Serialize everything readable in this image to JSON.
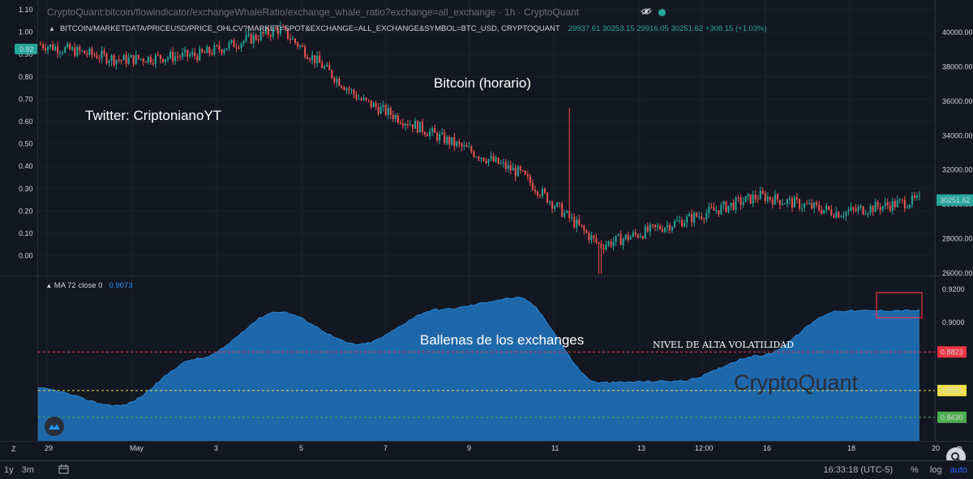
{
  "header": {
    "title": "CryptoQuant:bitcoin/flowindicator/exchangeWhaleRatio/exchange_whale_ratio?exchange=all_exchange · 1h · CryptoQuant",
    "eye_icon": "eye-hidden-icon",
    "status_color": "#26a69a"
  },
  "legend": {
    "collapse_glyph": "▴",
    "symbol": "BITCOIN/MARKETDATA/PRICEUSD/PRICE_OHLCV?MARKET=SPOT&EXCHANGE=ALL_EXCHANGE&SYMBOL=BTC_USD, CRYPTOQUANT",
    "ohlc": "29937.61 30253.15 29916.05 30251.62 +308.15 (+1.03%)"
  },
  "indicator": {
    "name": "MA 72 close 0",
    "value": "0.9073"
  },
  "annotations": {
    "twitter": "Twitter: CriptonianoYT",
    "bitcoin": "Bitcoin (horario)",
    "whales": "Ballenas de los exchanges",
    "volatility": "NIVEL DE ALTA VOLATILIDAD"
  },
  "watermark": "CryptoQuant",
  "left_axis": {
    "ticks": [
      "1.10",
      "1.00",
      "0.90",
      "0.80",
      "0.70",
      "0.60",
      "0.50",
      "0.40",
      "0.30",
      "0.20",
      "0.10",
      "0.00"
    ],
    "current_badge": "0.92"
  },
  "right_axis": {
    "ticks": [
      "40000.00",
      "38000.00",
      "36000.00",
      "34000.00",
      "32000.00",
      "30000.00",
      "28000.00",
      "26000.00"
    ],
    "price_badge": "30251.62"
  },
  "indicator_axis": {
    "ticks": [
      "0.9200",
      "0.9000"
    ],
    "badges": [
      {
        "label": "0.8823",
        "color": "#f23645"
      },
      {
        "label": "0.8591",
        "color": "#f0e14a"
      },
      {
        "label": "0.8430",
        "color": "#4caf50"
      }
    ]
  },
  "x_axis": {
    "labels": [
      "29",
      "May",
      "3",
      "5",
      "7",
      "9",
      "11",
      "13",
      "12:00",
      "16",
      "18",
      "20"
    ]
  },
  "bottom_bar": {
    "range_1y": "1y",
    "range_3m": "3m",
    "calendar_icon": "calendar-range-icon",
    "time": "16:33:18 (UTC-5)",
    "percent": "%",
    "log": "log",
    "auto": "auto"
  },
  "toolbar": {
    "z_label": "Z",
    "search_icon": "search-icon",
    "settings_icon": "gear-icon"
  },
  "colors": {
    "background": "#131722",
    "up": "#26a69a",
    "down": "#ef5350",
    "area_fill": "#1f6fb5",
    "area_line": "#2a84d2",
    "grid": "#1c202b",
    "highlight_box": "#f23645"
  },
  "chart_data": [
    {
      "type": "line",
      "name": "BTC/USD hourly (close)",
      "x": [
        "29",
        "May",
        "3",
        "5",
        "7",
        "9",
        "11",
        "13",
        "12:00",
        "16",
        "18",
        "20"
      ],
      "y_close": [
        39300,
        38400,
        38700,
        40200,
        36100,
        33900,
        31800,
        27600,
        29000,
        30500,
        29500,
        30251.62
      ],
      "ylim": [
        25500,
        41000
      ],
      "low_wick": 25950,
      "high_wick": 35600
    },
    {
      "type": "area",
      "name": "MA 72 close 0",
      "x": [
        "29",
        "May",
        "3",
        "5",
        "7",
        "9",
        "11",
        "13",
        "12:00",
        "16",
        "18",
        "20"
      ],
      "values": [
        0.8603,
        0.85,
        0.8782,
        0.9065,
        0.8868,
        0.9078,
        0.9148,
        0.8638,
        0.8648,
        0.88,
        0.907,
        0.9073
      ],
      "ylim": [
        0.8377,
        0.9228
      ],
      "levels": [
        0.8823,
        0.8591,
        0.843
      ]
    }
  ]
}
